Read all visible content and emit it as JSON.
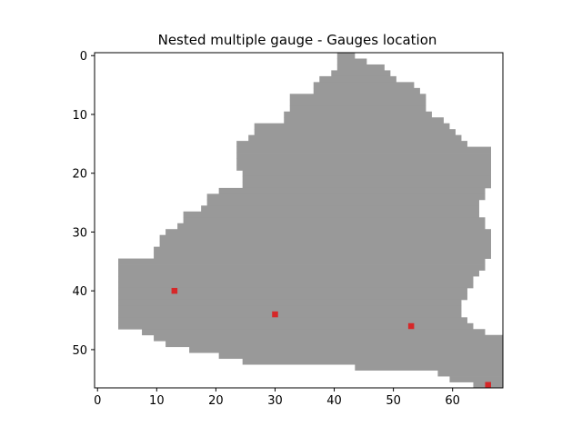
{
  "chart_data": {
    "type": "heatmap",
    "title": "Nested multiple gauge - Gauges location",
    "xlabel": "",
    "ylabel": "",
    "xlim": [
      -0.5,
      68.5
    ],
    "ylim": [
      56.5,
      -0.5
    ],
    "x_ticks": [
      0,
      10,
      20,
      30,
      40,
      50,
      60
    ],
    "y_ticks": [
      0,
      10,
      20,
      30,
      40,
      50
    ],
    "grid": false,
    "colors": {
      "catchment": "#999999",
      "gauge": "#d62728",
      "axes": "#000000",
      "background": "#ffffff"
    },
    "catchment_row_spans": [
      [
        [
          41,
          43
        ]
      ],
      [
        [
          41,
          45
        ]
      ],
      [
        [
          41,
          48
        ]
      ],
      [
        [
          40,
          49
        ]
      ],
      [
        [
          38,
          50
        ]
      ],
      [
        [
          37,
          53
        ]
      ],
      [
        [
          37,
          54
        ]
      ],
      [
        [
          33,
          55
        ]
      ],
      [
        [
          33,
          55
        ]
      ],
      [
        [
          33,
          55
        ]
      ],
      [
        [
          32,
          56
        ]
      ],
      [
        [
          32,
          58
        ]
      ],
      [
        [
          27,
          59
        ]
      ],
      [
        [
          27,
          60
        ]
      ],
      [
        [
          26,
          61
        ]
      ],
      [
        [
          24,
          62
        ]
      ],
      [
        [
          24,
          66
        ]
      ],
      [
        [
          24,
          66
        ]
      ],
      [
        [
          24,
          66
        ]
      ],
      [
        [
          24,
          66
        ]
      ],
      [
        [
          25,
          66
        ]
      ],
      [
        [
          25,
          66
        ]
      ],
      [
        [
          25,
          66
        ]
      ],
      [
        [
          21,
          65
        ]
      ],
      [
        [
          19,
          65
        ]
      ],
      [
        [
          19,
          64
        ]
      ],
      [
        [
          18,
          64
        ]
      ],
      [
        [
          15,
          64
        ]
      ],
      [
        [
          15,
          65
        ]
      ],
      [
        [
          14,
          65
        ]
      ],
      [
        [
          12,
          66
        ]
      ],
      [
        [
          11,
          66
        ]
      ],
      [
        [
          11,
          66
        ]
      ],
      [
        [
          10,
          66
        ]
      ],
      [
        [
          10,
          66
        ]
      ],
      [
        [
          4,
          65
        ]
      ],
      [
        [
          4,
          65
        ]
      ],
      [
        [
          4,
          64
        ]
      ],
      [
        [
          4,
          63
        ]
      ],
      [
        [
          4,
          63
        ]
      ],
      [
        [
          4,
          62
        ]
      ],
      [
        [
          4,
          62
        ]
      ],
      [
        [
          4,
          61
        ]
      ],
      [
        [
          4,
          61
        ]
      ],
      [
        [
          4,
          61
        ]
      ],
      [
        [
          4,
          62
        ]
      ],
      [
        [
          4,
          63
        ]
      ],
      [
        [
          8,
          65
        ]
      ],
      [
        [
          10,
          68
        ]
      ],
      [
        [
          12,
          68
        ]
      ],
      [
        [
          16,
          68
        ]
      ],
      [
        [
          21,
          68
        ]
      ],
      [
        [
          25,
          68
        ]
      ],
      [
        [
          44,
          68
        ]
      ],
      [
        [
          58,
          68
        ]
      ],
      [
        [
          60,
          68
        ]
      ],
      [
        [
          64,
          68
        ]
      ]
    ],
    "gauges": [
      {
        "x": 13,
        "y": 40
      },
      {
        "x": 30,
        "y": 44
      },
      {
        "x": 53,
        "y": 46
      },
      {
        "x": 66,
        "y": 56
      }
    ]
  }
}
